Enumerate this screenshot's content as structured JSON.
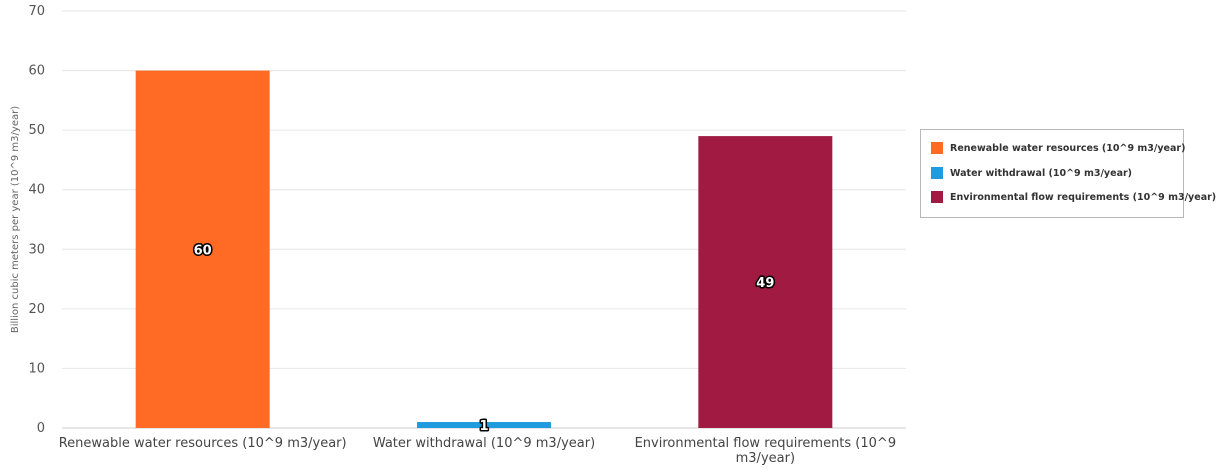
{
  "chart_data": {
    "type": "bar",
    "categories": [
      "Renewable water resources (10^9 m3/year)",
      "Water withdrawal (10^9 m3/year)",
      "Environmental flow requirements (10^9 m3/year)"
    ],
    "category_lines": [
      [
        "Renewable water resources (10^9 m3/year)"
      ],
      [
        "Water withdrawal (10^9 m3/year)"
      ],
      [
        "Environmental flow requirements (10^9",
        "m3/year)"
      ]
    ],
    "values": [
      60,
      1,
      49
    ],
    "data_labels": [
      "60",
      "1",
      "49"
    ],
    "colors": [
      "#ff6a24",
      "#1f9bde",
      "#a01a42"
    ],
    "ylabel": "Billion cubic meters per year (10^9 m3/year)",
    "ylim": [
      0,
      70
    ],
    "yticks": [
      0,
      10,
      20,
      30,
      40,
      50,
      60,
      70
    ],
    "grid": true,
    "legend_position": "right",
    "legend": [
      {
        "label": "Renewable water resources (10^9 m3/year)",
        "color": "#ff6a24"
      },
      {
        "label": "Water withdrawal (10^9 m3/year)",
        "color": "#1f9bde"
      },
      {
        "label": "Environmental flow requirements (10^9 m3/year)",
        "color": "#a01a42"
      }
    ]
  }
}
